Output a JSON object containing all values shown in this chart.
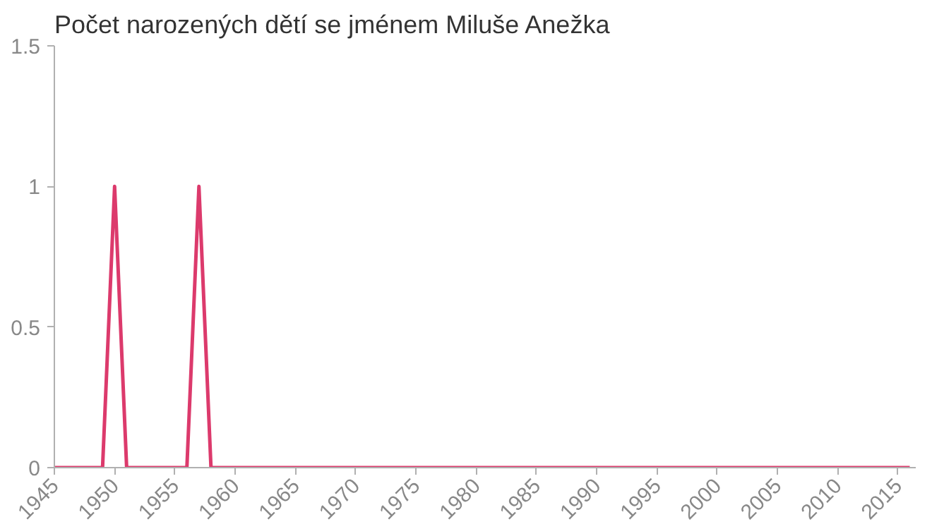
{
  "chart_data": {
    "type": "line",
    "title": "Počet narozených dětí se jménem Miluše Anežka",
    "x": [
      1945,
      1949,
      1950,
      1951,
      1956,
      1957,
      1958,
      2016
    ],
    "series": [
      {
        "color": "#dc3a6c",
        "values": [
          0,
          0,
          1,
          0,
          0,
          1,
          0,
          0
        ]
      }
    ],
    "xlim": [
      1945,
      2016.5
    ],
    "ylim": [
      0,
      1.5
    ],
    "xticks": [
      1945,
      1950,
      1955,
      1960,
      1965,
      1970,
      1975,
      1980,
      1985,
      1990,
      1995,
      2000,
      2005,
      2010,
      2015
    ],
    "yticks": [
      0,
      0.5,
      1,
      1.5
    ],
    "grid": false,
    "marker": "none",
    "line_style": "solid"
  }
}
